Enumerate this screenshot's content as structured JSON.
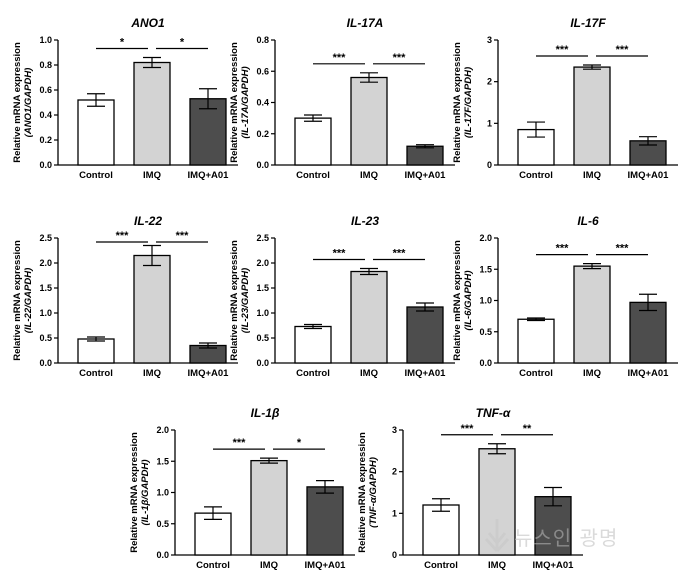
{
  "chart_data": [
    {
      "type": "bar",
      "title": "ANO1",
      "ylabel": "Relative mRNA expression",
      "ylabel2": "(ANO1/GAPDH)",
      "categories": [
        "Control",
        "IMQ",
        "IMQ+A01"
      ],
      "values": [
        0.52,
        0.82,
        0.53
      ],
      "errors": [
        0.05,
        0.04,
        0.08
      ],
      "ylim": [
        0,
        1.0
      ],
      "yticks": [
        "0.0",
        "0.2",
        "0.4",
        "0.6",
        "0.8",
        "1.0"
      ],
      "significance": [
        "*",
        "*"
      ],
      "bar_colors": [
        "#ffffff",
        "#d3d3d3",
        "#4d4d4d"
      ]
    },
    {
      "type": "bar",
      "title": "IL-17A",
      "ylabel": "Relative mRNA expression",
      "ylabel2": "(IL-17A/GAPDH)",
      "categories": [
        "Control",
        "IMQ",
        "IMQ+A01"
      ],
      "values": [
        0.3,
        0.56,
        0.12
      ],
      "errors": [
        0.02,
        0.03,
        0.01
      ],
      "ylim": [
        0,
        0.8
      ],
      "yticks": [
        "0.0",
        "0.2",
        "0.4",
        "0.6",
        "0.8"
      ],
      "significance": [
        "***",
        "***"
      ],
      "bar_colors": [
        "#ffffff",
        "#d3d3d3",
        "#4d4d4d"
      ]
    },
    {
      "type": "bar",
      "title": "IL-17F",
      "ylabel": "Relative mRNA expression",
      "ylabel2": "(IL-17F/GAPDH)",
      "categories": [
        "Control",
        "IMQ",
        "IMQ+A01"
      ],
      "values": [
        0.85,
        2.35,
        0.58
      ],
      "errors": [
        0.18,
        0.05,
        0.1
      ],
      "ylim": [
        0,
        3
      ],
      "yticks": [
        "0",
        "1",
        "2",
        "3"
      ],
      "significance": [
        "***",
        "***"
      ],
      "bar_colors": [
        "#ffffff",
        "#d3d3d3",
        "#4d4d4d"
      ]
    },
    {
      "type": "bar",
      "title": "IL-22",
      "ylabel": "Relative mRNA expression",
      "ylabel2": "(IL-22/GAPDH)",
      "categories": [
        "Control",
        "IMQ",
        "IMQ+A01"
      ],
      "values": [
        0.48,
        2.15,
        0.35
      ],
      "errors": [
        0.04,
        0.2,
        0.05
      ],
      "ylim": [
        0,
        2.5
      ],
      "yticks": [
        "0.0",
        "0.5",
        "1.0",
        "1.5",
        "2.0",
        "2.5"
      ],
      "significance": [
        "***",
        "***"
      ],
      "bar_colors": [
        "#ffffff",
        "#d3d3d3",
        "#4d4d4d"
      ]
    },
    {
      "type": "bar",
      "title": "IL-23",
      "ylabel": "Relative mRNA expression",
      "ylabel2": "(IL-23/GAPDH)",
      "categories": [
        "Control",
        "IMQ",
        "IMQ+A01"
      ],
      "values": [
        0.73,
        1.83,
        1.12
      ],
      "errors": [
        0.04,
        0.06,
        0.08
      ],
      "ylim": [
        0,
        2.5
      ],
      "yticks": [
        "0.0",
        "0.5",
        "1.0",
        "1.5",
        "2.0",
        "2.5"
      ],
      "significance": [
        "***",
        "***"
      ],
      "bar_colors": [
        "#ffffff",
        "#d3d3d3",
        "#4d4d4d"
      ]
    },
    {
      "type": "bar",
      "title": "IL-6",
      "ylabel": "Relative mRNA expression",
      "ylabel2": "(IL-6/GAPDH)",
      "categories": [
        "Control",
        "IMQ",
        "IMQ+A01"
      ],
      "values": [
        0.7,
        1.55,
        0.97
      ],
      "errors": [
        0.02,
        0.04,
        0.13
      ],
      "ylim": [
        0,
        2.0
      ],
      "yticks": [
        "0.0",
        "0.5",
        "1.0",
        "1.5",
        "2.0"
      ],
      "significance": [
        "***",
        "***"
      ],
      "bar_colors": [
        "#ffffff",
        "#d3d3d3",
        "#4d4d4d"
      ]
    },
    {
      "type": "bar",
      "title": "IL-1β",
      "ylabel": "Relative mRNA expression",
      "ylabel2": "(IL-1β/GAPDH)",
      "categories": [
        "Control",
        "IMQ",
        "IMQ+A01"
      ],
      "values": [
        0.67,
        1.51,
        1.09
      ],
      "errors": [
        0.1,
        0.04,
        0.1
      ],
      "ylim": [
        0,
        2.0
      ],
      "yticks": [
        "0.0",
        "0.5",
        "1.0",
        "1.5",
        "2.0"
      ],
      "significance": [
        "***",
        "*"
      ],
      "bar_colors": [
        "#ffffff",
        "#d3d3d3",
        "#4d4d4d"
      ]
    },
    {
      "type": "bar",
      "title": "TNF-α",
      "ylabel": "Relative mRNA expression",
      "ylabel2": "(TNF-α/GAPDH)",
      "categories": [
        "Control",
        "IMQ",
        "IMQ+A01"
      ],
      "values": [
        1.2,
        2.55,
        1.4
      ],
      "errors": [
        0.15,
        0.12,
        0.22
      ],
      "ylim": [
        0,
        3
      ],
      "yticks": [
        "0",
        "1",
        "2",
        "3"
      ],
      "significance": [
        "***",
        "**"
      ],
      "bar_colors": [
        "#ffffff",
        "#d3d3d3",
        "#4d4d4d"
      ]
    }
  ],
  "watermark": {
    "text": "뉴스인 광명"
  }
}
